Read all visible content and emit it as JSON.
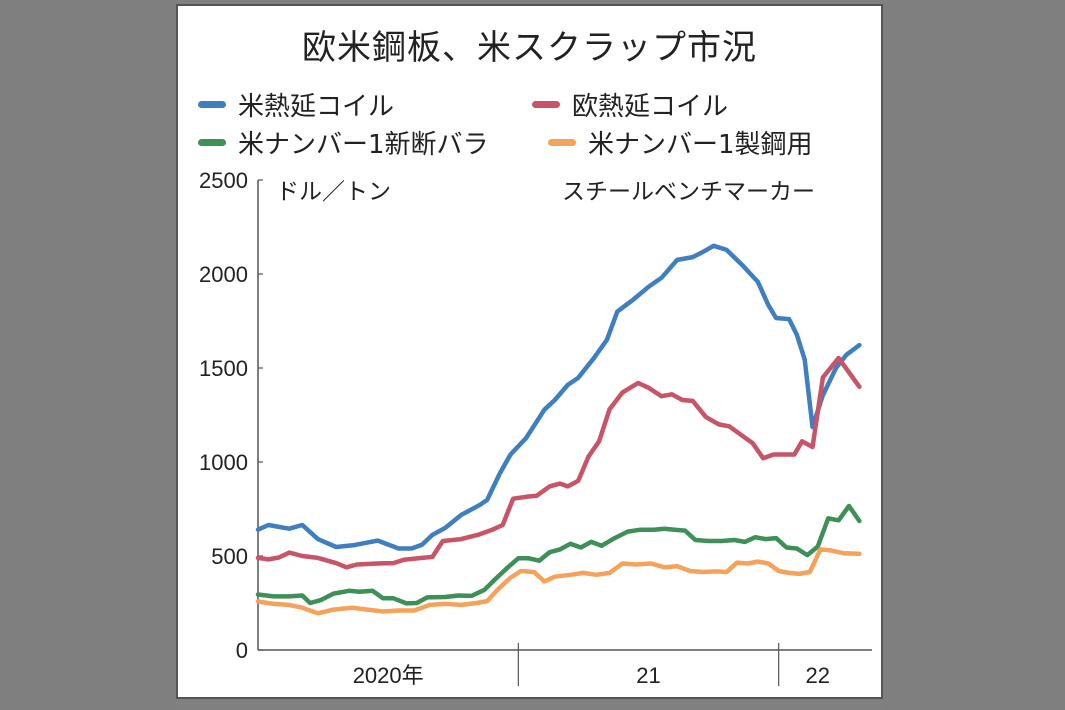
{
  "chart_data": {
    "type": "line",
    "title": "欧米鋼板、米スクラップ市況",
    "ylabel": "ドル／トン",
    "source": "スチールベンチマーカー",
    "ylim": [
      0,
      2500
    ],
    "yticks": [
      0,
      500,
      1000,
      1500,
      2000,
      2500
    ],
    "xlim": [
      2020.0,
      2022.32
    ],
    "xticks": [
      {
        "value": 2021.0
      },
      {
        "value": 2022.0
      }
    ],
    "xlabels": [
      {
        "label": "2020年",
        "value": 2020.5
      },
      {
        "label": "21",
        "value": 2021.5
      },
      {
        "label": "22",
        "value": 2022.15
      }
    ],
    "grid": false,
    "legend_placement": "top",
    "series": [
      {
        "name": "米熱延コイル",
        "color": "#3f7fbf",
        "points": [
          [
            2020.0,
            640
          ],
          [
            2020.04,
            665
          ],
          [
            2020.12,
            645
          ],
          [
            2020.17,
            665
          ],
          [
            2020.23,
            590
          ],
          [
            2020.3,
            548
          ],
          [
            2020.37,
            558
          ],
          [
            2020.46,
            582
          ],
          [
            2020.54,
            540
          ],
          [
            2020.59,
            540
          ],
          [
            2020.63,
            560
          ],
          [
            2020.67,
            612
          ],
          [
            2020.72,
            650
          ],
          [
            2020.78,
            718
          ],
          [
            2020.85,
            770
          ],
          [
            2020.88,
            798
          ],
          [
            2020.93,
            942
          ],
          [
            2020.97,
            1040
          ],
          [
            2021.03,
            1128
          ],
          [
            2021.1,
            1278
          ],
          [
            2021.14,
            1330
          ],
          [
            2021.19,
            1410
          ],
          [
            2021.23,
            1448
          ],
          [
            2021.29,
            1552
          ],
          [
            2021.34,
            1650
          ],
          [
            2021.38,
            1800
          ],
          [
            2021.44,
            1862
          ],
          [
            2021.5,
            1932
          ],
          [
            2021.55,
            1980
          ],
          [
            2021.61,
            2075
          ],
          [
            2021.67,
            2090
          ],
          [
            2021.71,
            2118
          ],
          [
            2021.75,
            2150
          ],
          [
            2021.8,
            2128
          ],
          [
            2021.86,
            2048
          ],
          [
            2021.92,
            1958
          ],
          [
            2021.96,
            1835
          ],
          [
            2021.99,
            1766
          ],
          [
            2022.04,
            1760
          ],
          [
            2022.07,
            1676
          ],
          [
            2022.1,
            1545
          ],
          [
            2022.13,
            1186
          ],
          [
            2022.17,
            1356
          ],
          [
            2022.22,
            1500
          ],
          [
            2022.26,
            1570
          ],
          [
            2022.31,
            1622
          ]
        ]
      },
      {
        "name": "欧熱延コイル",
        "color": "#c85468",
        "points": [
          [
            2020.0,
            490
          ],
          [
            2020.04,
            482
          ],
          [
            2020.08,
            492
          ],
          [
            2020.12,
            518
          ],
          [
            2020.17,
            500
          ],
          [
            2020.23,
            490
          ],
          [
            2020.3,
            462
          ],
          [
            2020.34,
            440
          ],
          [
            2020.38,
            455
          ],
          [
            2020.46,
            460
          ],
          [
            2020.52,
            462
          ],
          [
            2020.56,
            480
          ],
          [
            2020.63,
            490
          ],
          [
            2020.67,
            495
          ],
          [
            2020.71,
            580
          ],
          [
            2020.78,
            590
          ],
          [
            2020.85,
            615
          ],
          [
            2020.9,
            640
          ],
          [
            2020.94,
            665
          ],
          [
            2020.98,
            805
          ],
          [
            2021.03,
            815
          ],
          [
            2021.07,
            820
          ],
          [
            2021.12,
            870
          ],
          [
            2021.16,
            885
          ],
          [
            2021.19,
            870
          ],
          [
            2021.23,
            900
          ],
          [
            2021.27,
            1030
          ],
          [
            2021.31,
            1110
          ],
          [
            2021.35,
            1280
          ],
          [
            2021.4,
            1370
          ],
          [
            2021.46,
            1420
          ],
          [
            2021.5,
            1395
          ],
          [
            2021.55,
            1350
          ],
          [
            2021.59,
            1360
          ],
          [
            2021.63,
            1330
          ],
          [
            2021.67,
            1325
          ],
          [
            2021.72,
            1240
          ],
          [
            2021.77,
            1200
          ],
          [
            2021.81,
            1190
          ],
          [
            2021.86,
            1140
          ],
          [
            2021.9,
            1100
          ],
          [
            2021.94,
            1020
          ],
          [
            2021.98,
            1040
          ],
          [
            2022.02,
            1040
          ],
          [
            2022.06,
            1040
          ],
          [
            2022.09,
            1110
          ],
          [
            2022.13,
            1080
          ],
          [
            2022.17,
            1450
          ],
          [
            2022.23,
            1553
          ],
          [
            2022.31,
            1400
          ]
        ]
      },
      {
        "name": "米ナンバー1新断バラ",
        "color": "#3f8f58",
        "points": [
          [
            2020.0,
            295
          ],
          [
            2020.06,
            285
          ],
          [
            2020.12,
            285
          ],
          [
            2020.17,
            290
          ],
          [
            2020.2,
            250
          ],
          [
            2020.24,
            265
          ],
          [
            2020.29,
            300
          ],
          [
            2020.35,
            315
          ],
          [
            2020.39,
            310
          ],
          [
            2020.44,
            315
          ],
          [
            2020.48,
            275
          ],
          [
            2020.52,
            275
          ],
          [
            2020.57,
            248
          ],
          [
            2020.61,
            250
          ],
          [
            2020.65,
            280
          ],
          [
            2020.72,
            282
          ],
          [
            2020.77,
            290
          ],
          [
            2020.82,
            288
          ],
          [
            2020.87,
            320
          ],
          [
            2020.91,
            375
          ],
          [
            2020.96,
            440
          ],
          [
            2021.0,
            488
          ],
          [
            2021.04,
            488
          ],
          [
            2021.08,
            475
          ],
          [
            2021.12,
            520
          ],
          [
            2021.16,
            535
          ],
          [
            2021.2,
            565
          ],
          [
            2021.24,
            545
          ],
          [
            2021.28,
            575
          ],
          [
            2021.32,
            555
          ],
          [
            2021.37,
            595
          ],
          [
            2021.42,
            630
          ],
          [
            2021.47,
            640
          ],
          [
            2021.52,
            640
          ],
          [
            2021.56,
            645
          ],
          [
            2021.6,
            640
          ],
          [
            2021.64,
            635
          ],
          [
            2021.68,
            585
          ],
          [
            2021.73,
            580
          ],
          [
            2021.78,
            580
          ],
          [
            2021.83,
            585
          ],
          [
            2021.87,
            575
          ],
          [
            2021.91,
            600
          ],
          [
            2021.95,
            590
          ],
          [
            2021.99,
            595
          ],
          [
            2022.03,
            545
          ],
          [
            2022.07,
            540
          ],
          [
            2022.11,
            505
          ],
          [
            2022.15,
            550
          ],
          [
            2022.19,
            700
          ],
          [
            2022.23,
            690
          ],
          [
            2022.27,
            766
          ],
          [
            2022.31,
            686
          ]
        ]
      },
      {
        "name": "米ナンバー1製鋼用",
        "color": "#f5a25a",
        "points": [
          [
            2020.0,
            258
          ],
          [
            2020.06,
            245
          ],
          [
            2020.12,
            240
          ],
          [
            2020.17,
            225
          ],
          [
            2020.23,
            195
          ],
          [
            2020.29,
            215
          ],
          [
            2020.36,
            225
          ],
          [
            2020.42,
            215
          ],
          [
            2020.48,
            205
          ],
          [
            2020.54,
            210
          ],
          [
            2020.6,
            210
          ],
          [
            2020.66,
            240
          ],
          [
            2020.72,
            245
          ],
          [
            2020.78,
            240
          ],
          [
            2020.84,
            250
          ],
          [
            2020.88,
            260
          ],
          [
            2020.92,
            320
          ],
          [
            2020.97,
            385
          ],
          [
            2021.01,
            420
          ],
          [
            2021.06,
            415
          ],
          [
            2021.1,
            365
          ],
          [
            2021.14,
            390
          ],
          [
            2021.2,
            400
          ],
          [
            2021.25,
            410
          ],
          [
            2021.3,
            400
          ],
          [
            2021.35,
            410
          ],
          [
            2021.4,
            460
          ],
          [
            2021.45,
            455
          ],
          [
            2021.51,
            460
          ],
          [
            2021.56,
            440
          ],
          [
            2021.61,
            445
          ],
          [
            2021.66,
            420
          ],
          [
            2021.71,
            415
          ],
          [
            2021.76,
            418
          ],
          [
            2021.8,
            415
          ],
          [
            2021.84,
            465
          ],
          [
            2021.88,
            460
          ],
          [
            2021.92,
            470
          ],
          [
            2021.96,
            460
          ],
          [
            2022.0,
            420
          ],
          [
            2022.04,
            410
          ],
          [
            2022.08,
            405
          ],
          [
            2022.12,
            415
          ],
          [
            2022.16,
            535
          ],
          [
            2022.2,
            530
          ],
          [
            2022.25,
            515
          ],
          [
            2022.31,
            512
          ]
        ]
      }
    ]
  }
}
